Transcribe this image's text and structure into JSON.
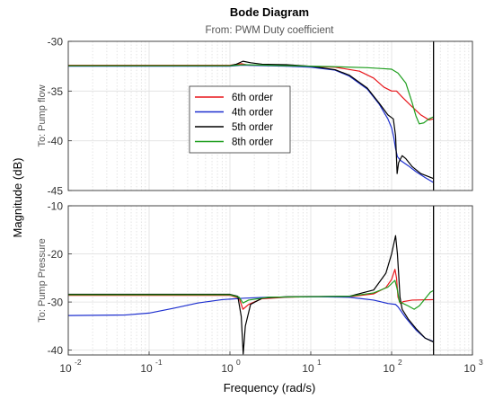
{
  "chart_data": {
    "type": "line",
    "title": "Bode Diagram",
    "subtitle": "From: PWM Duty coefficient",
    "xlabel": "Frequency  (rad/s)",
    "ylabel": "Magnitude (dB)",
    "xscale": "log",
    "xlim": [
      0.01,
      1000
    ],
    "xticks": [
      0.01,
      0.1,
      1,
      10,
      100,
      1000
    ],
    "xtick_labels": [
      [
        "10",
        "-2"
      ],
      [
        "10",
        "-1"
      ],
      [
        "10",
        "0"
      ],
      [
        "10",
        "1"
      ],
      [
        "10",
        "2"
      ],
      [
        "10",
        "3"
      ]
    ],
    "vline_x": 330,
    "grid": true,
    "legend": {
      "placement": "inside-top-panel-center",
      "entries": [
        "6th order",
        "4th order",
        "5th order",
        "8th order"
      ]
    },
    "panels": [
      {
        "row_label": "To: Pump flow",
        "ylim": [
          -45,
          -30
        ],
        "yticks": [
          -45,
          -40,
          -35,
          -30
        ],
        "series": [
          {
            "name": "6th order",
            "color": "#e8171c",
            "points": [
              [
                0.01,
                -32.4
              ],
              [
                1,
                -32.4
              ],
              [
                1.4,
                -32.25
              ],
              [
                1.7,
                -32.4
              ],
              [
                5,
                -32.45
              ],
              [
                20,
                -32.6
              ],
              [
                40,
                -33.0
              ],
              [
                60,
                -33.7
              ],
              [
                80,
                -34.6
              ],
              [
                100,
                -35.0
              ],
              [
                115,
                -35.0
              ],
              [
                135,
                -35.6
              ],
              [
                170,
                -36.4
              ],
              [
                230,
                -37.4
              ],
              [
                290,
                -37.9
              ],
              [
                330,
                -37.8
              ]
            ]
          },
          {
            "name": "4th order",
            "color": "#1d2fcf",
            "points": [
              [
                0.01,
                -32.5
              ],
              [
                1,
                -32.5
              ],
              [
                1.4,
                -32.4
              ],
              [
                5,
                -32.5
              ],
              [
                10,
                -32.6
              ],
              [
                20,
                -32.9
              ],
              [
                30,
                -33.5
              ],
              [
                50,
                -34.8
              ],
              [
                70,
                -36.3
              ],
              [
                90,
                -37.8
              ],
              [
                100,
                -38.7
              ],
              [
                106,
                -39.6
              ],
              [
                112,
                -40.8
              ],
              [
                118,
                -41.6
              ],
              [
                130,
                -42.0
              ],
              [
                160,
                -42.5
              ],
              [
                200,
                -43.1
              ],
              [
                260,
                -43.7
              ],
              [
                330,
                -44.2
              ]
            ]
          },
          {
            "name": "5th order",
            "color": "#000000",
            "points": [
              [
                0.01,
                -32.45
              ],
              [
                1,
                -32.45
              ],
              [
                1.2,
                -32.3
              ],
              [
                1.45,
                -32.0
              ],
              [
                1.8,
                -32.15
              ],
              [
                2.5,
                -32.3
              ],
              [
                5,
                -32.35
              ],
              [
                10,
                -32.5
              ],
              [
                20,
                -32.85
              ],
              [
                30,
                -33.4
              ],
              [
                50,
                -34.7
              ],
              [
                70,
                -36.2
              ],
              [
                90,
                -37.4
              ],
              [
                105,
                -37.8
              ],
              [
                112,
                -39.5
              ],
              [
                117,
                -43.3
              ],
              [
                122,
                -42.2
              ],
              [
                135,
                -41.5
              ],
              [
                150,
                -41.8
              ],
              [
                180,
                -42.6
              ],
              [
                230,
                -43.3
              ],
              [
                330,
                -43.8
              ]
            ]
          },
          {
            "name": "8th order",
            "color": "#1e9e1e",
            "points": [
              [
                0.01,
                -32.45
              ],
              [
                1,
                -32.45
              ],
              [
                1.5,
                -32.35
              ],
              [
                5,
                -32.45
              ],
              [
                20,
                -32.55
              ],
              [
                50,
                -32.65
              ],
              [
                80,
                -32.75
              ],
              [
                100,
                -32.8
              ],
              [
                120,
                -33.2
              ],
              [
                150,
                -34.2
              ],
              [
                180,
                -36.2
              ],
              [
                200,
                -37.5
              ],
              [
                220,
                -38.3
              ],
              [
                250,
                -38.2
              ],
              [
                290,
                -37.8
              ],
              [
                330,
                -37.6
              ]
            ]
          }
        ]
      },
      {
        "row_label": "To: Pump Pressure",
        "ylim": [
          -41,
          -10
        ],
        "yticks": [
          -40,
          -30,
          -20,
          -10
        ],
        "series": [
          {
            "name": "6th order",
            "color": "#e8171c",
            "points": [
              [
                0.01,
                -28.6
              ],
              [
                1,
                -28.6
              ],
              [
                1.3,
                -29.2
              ],
              [
                1.45,
                -31.5
              ],
              [
                1.7,
                -30.5
              ],
              [
                2.5,
                -29.3
              ],
              [
                5,
                -29.0
              ],
              [
                10,
                -28.9
              ],
              [
                30,
                -28.9
              ],
              [
                60,
                -28.3
              ],
              [
                85,
                -27.0
              ],
              [
                100,
                -25.3
              ],
              [
                110,
                -23.2
              ],
              [
                115,
                -25.0
              ],
              [
                120,
                -29.0
              ],
              [
                128,
                -30.3
              ],
              [
                140,
                -29.9
              ],
              [
                180,
                -29.6
              ],
              [
                330,
                -29.5
              ]
            ]
          },
          {
            "name": "4th order",
            "color": "#1d2fcf",
            "points": [
              [
                0.01,
                -32.8
              ],
              [
                0.05,
                -32.7
              ],
              [
                0.1,
                -32.3
              ],
              [
                0.2,
                -31.3
              ],
              [
                0.4,
                -30.2
              ],
              [
                0.8,
                -29.5
              ],
              [
                1.5,
                -29.2
              ],
              [
                3,
                -29.0
              ],
              [
                10,
                -28.9
              ],
              [
                30,
                -29.0
              ],
              [
                60,
                -29.6
              ],
              [
                90,
                -30.3
              ],
              [
                112,
                -30.5
              ],
              [
                120,
                -31.0
              ],
              [
                150,
                -33.3
              ],
              [
                200,
                -35.8
              ],
              [
                260,
                -37.5
              ],
              [
                330,
                -38.2
              ]
            ]
          },
          {
            "name": "5th order",
            "color": "#000000",
            "points": [
              [
                0.01,
                -28.4
              ],
              [
                1,
                -28.4
              ],
              [
                1.25,
                -28.8
              ],
              [
                1.38,
                -33.0
              ],
              [
                1.46,
                -40.8
              ],
              [
                1.55,
                -35.0
              ],
              [
                1.8,
                -30.5
              ],
              [
                2.5,
                -29.2
              ],
              [
                5,
                -28.9
              ],
              [
                10,
                -28.85
              ],
              [
                30,
                -28.8
              ],
              [
                60,
                -27.5
              ],
              [
                85,
                -24.0
              ],
              [
                100,
                -20.0
              ],
              [
                112,
                -16.2
              ],
              [
                118,
                -20.0
              ],
              [
                123,
                -25.0
              ],
              [
                127,
                -29.0
              ],
              [
                135,
                -31.5
              ],
              [
                160,
                -33.5
              ],
              [
                200,
                -35.5
              ],
              [
                260,
                -37.5
              ],
              [
                330,
                -38.3
              ]
            ]
          },
          {
            "name": "8th order",
            "color": "#1e9e1e",
            "points": [
              [
                0.01,
                -28.5
              ],
              [
                1,
                -28.5
              ],
              [
                1.3,
                -29.0
              ],
              [
                1.45,
                -30.2
              ],
              [
                1.7,
                -29.6
              ],
              [
                3,
                -29.0
              ],
              [
                10,
                -28.9
              ],
              [
                30,
                -28.8
              ],
              [
                60,
                -28.1
              ],
              [
                90,
                -26.9
              ],
              [
                110,
                -25.5
              ],
              [
                118,
                -27.5
              ],
              [
                125,
                -30.0
              ],
              [
                135,
                -30.2
              ],
              [
                160,
                -30.8
              ],
              [
                190,
                -31.5
              ],
              [
                220,
                -30.8
              ],
              [
                260,
                -29.3
              ],
              [
                300,
                -28.0
              ],
              [
                330,
                -27.6
              ]
            ]
          }
        ]
      }
    ]
  }
}
